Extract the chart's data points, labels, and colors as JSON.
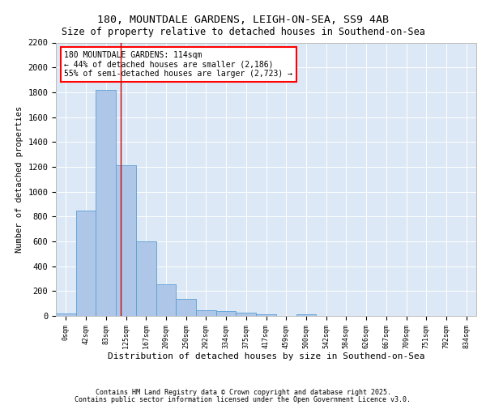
{
  "title_line1": "180, MOUNTDALE GARDENS, LEIGH-ON-SEA, SS9 4AB",
  "title_line2": "Size of property relative to detached houses in Southend-on-Sea",
  "xlabel": "Distribution of detached houses by size in Southend-on-Sea",
  "ylabel": "Number of detached properties",
  "bar_labels": [
    "0sqm",
    "42sqm",
    "83sqm",
    "125sqm",
    "167sqm",
    "209sqm",
    "250sqm",
    "292sqm",
    "334sqm",
    "375sqm",
    "417sqm",
    "459sqm",
    "500sqm",
    "542sqm",
    "584sqm",
    "626sqm",
    "667sqm",
    "709sqm",
    "751sqm",
    "792sqm",
    "834sqm"
  ],
  "bar_values": [
    20,
    845,
    1820,
    1210,
    600,
    255,
    140,
    45,
    40,
    25,
    15,
    0,
    15,
    0,
    0,
    0,
    0,
    0,
    0,
    0,
    0
  ],
  "bar_color": "#aec6e8",
  "bar_edge_color": "#5a9fd4",
  "vline_x": 2.73,
  "vline_color": "#cc0000",
  "ylim": [
    0,
    2200
  ],
  "yticks": [
    0,
    200,
    400,
    600,
    800,
    1000,
    1200,
    1400,
    1600,
    1800,
    2000,
    2200
  ],
  "annotation_text": "180 MOUNTDALE GARDENS: 114sqm\n← 44% of detached houses are smaller (2,186)\n55% of semi-detached houses are larger (2,723) →",
  "bg_color": "#dce8f5",
  "footer_line1": "Contains HM Land Registry data © Crown copyright and database right 2025.",
  "footer_line2": "Contains public sector information licensed under the Open Government Licence v3.0."
}
